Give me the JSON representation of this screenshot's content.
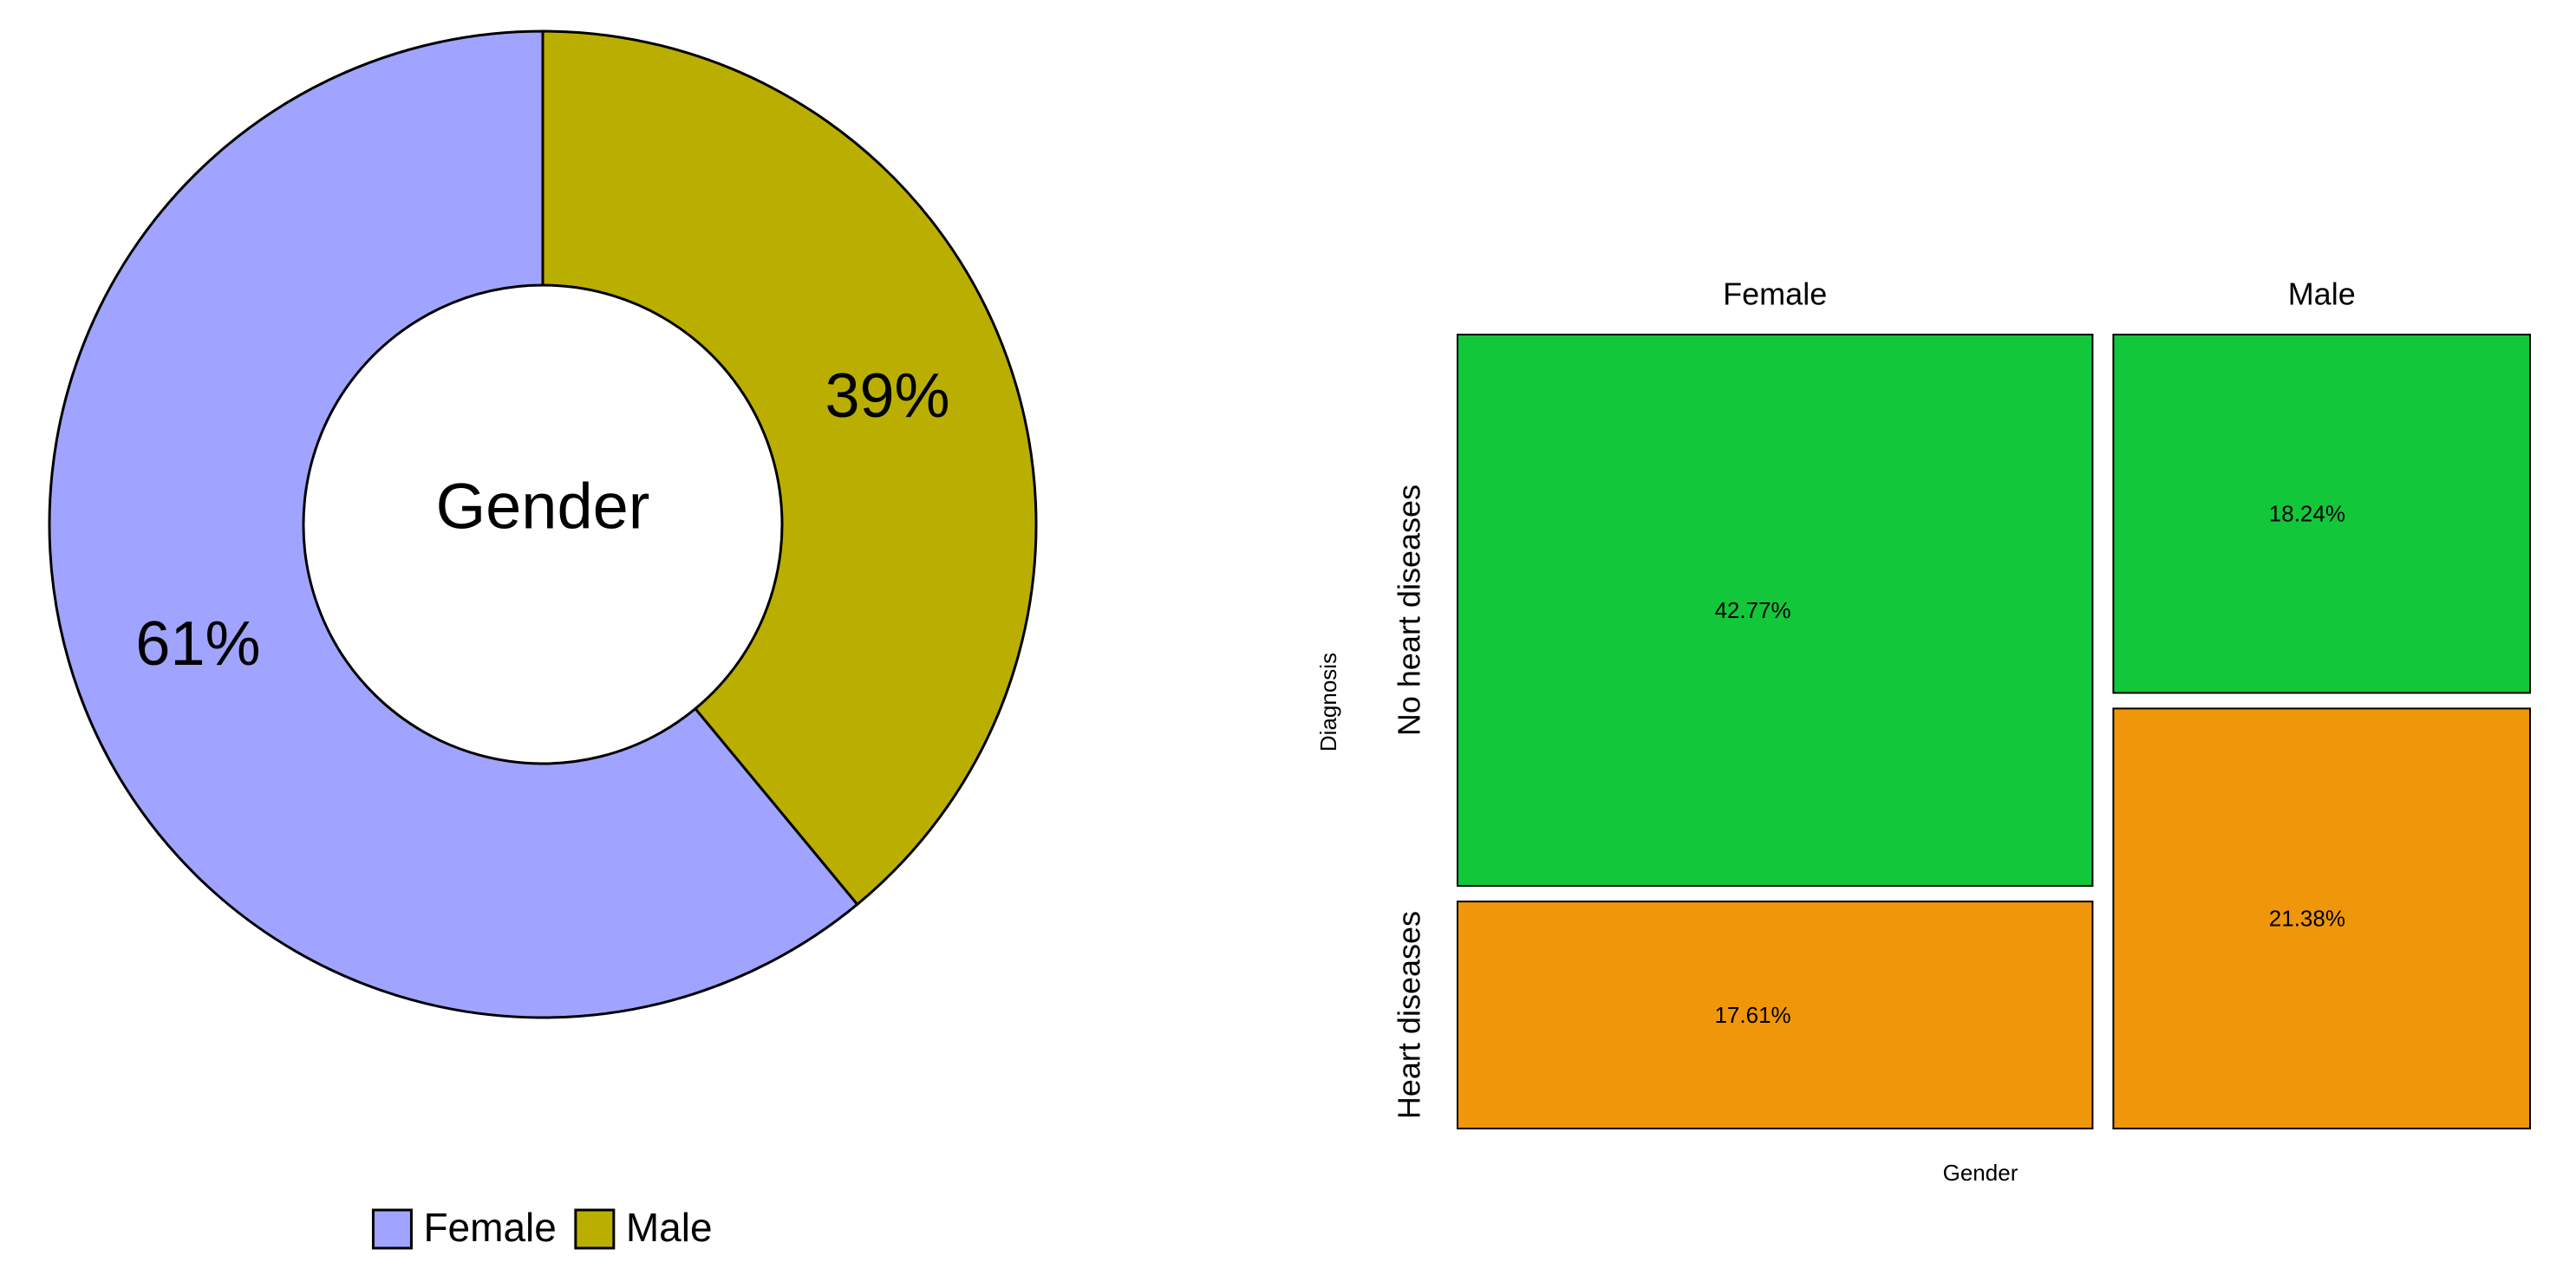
{
  "chart_data": [
    {
      "type": "pie",
      "variant": "donut",
      "center_label": "Gender",
      "categories": [
        "Female",
        "Male"
      ],
      "values": [
        61,
        39
      ],
      "value_labels": [
        "61%",
        "39%"
      ],
      "colors": [
        "#A0A4FF",
        "#BAAF00"
      ],
      "legend": {
        "placement": "bottom",
        "items": [
          {
            "label": "Female",
            "color": "#A0A4FF"
          },
          {
            "label": "Male",
            "color": "#BAAF00"
          }
        ]
      }
    },
    {
      "type": "mosaic",
      "xlabel": "Gender",
      "ylabel": "Diagnosis",
      "x_categories": [
        "Female",
        "Male"
      ],
      "y_categories": [
        "No heart diseases",
        "Heart diseases"
      ],
      "cells": [
        {
          "gender": "Female",
          "diagnosis": "No heart diseases",
          "value": 42.77,
          "label": "42.77%",
          "color": "#13C73A"
        },
        {
          "gender": "Female",
          "diagnosis": "Heart diseases",
          "value": 17.61,
          "label": "17.61%",
          "color": "#F0960A"
        },
        {
          "gender": "Male",
          "diagnosis": "No heart diseases",
          "value": 18.24,
          "label": "18.24%",
          "color": "#13C73A"
        },
        {
          "gender": "Male",
          "diagnosis": "Heart diseases",
          "value": 21.38,
          "label": "21.38%",
          "color": "#F0960A"
        }
      ]
    }
  ]
}
